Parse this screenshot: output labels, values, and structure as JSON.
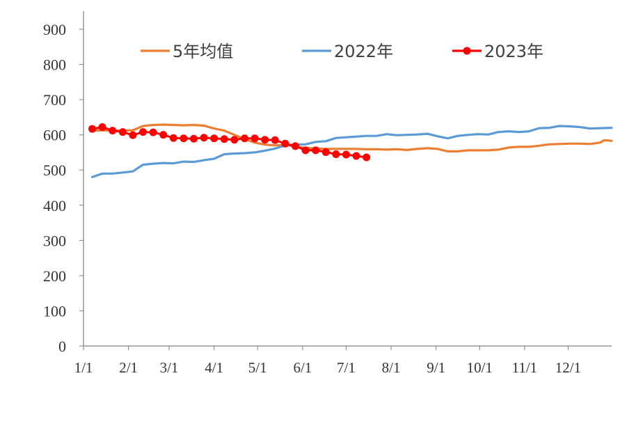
{
  "chart_data": {
    "type": "line",
    "ylim": [
      0,
      900
    ],
    "yticks": [
      "0",
      "100",
      "200",
      "300",
      "400",
      "500",
      "600",
      "700",
      "800",
      "900"
    ],
    "xlim": [
      1,
      365
    ],
    "xticks": [
      {
        "label": "1/1",
        "day": 1
      },
      {
        "label": "2/1",
        "day": 32
      },
      {
        "label": "3/1",
        "day": 60
      },
      {
        "label": "4/1",
        "day": 91
      },
      {
        "label": "5/1",
        "day": 121
      },
      {
        "label": "6/1",
        "day": 152
      },
      {
        "label": "7/1",
        "day": 182
      },
      {
        "label": "8/1",
        "day": 213
      },
      {
        "label": "9/1",
        "day": 244
      },
      {
        "label": "10/1",
        "day": 274
      },
      {
        "label": "11/1",
        "day": 305
      },
      {
        "label": "12/1",
        "day": 335
      }
    ],
    "legend_position": "top",
    "grid": false,
    "series": [
      {
        "name": "5年均值",
        "color": "#ED7D31",
        "marker": false,
        "points": [
          [
            7,
            612
          ],
          [
            14,
            613
          ],
          [
            21,
            612
          ],
          [
            28,
            612
          ],
          [
            35,
            613
          ],
          [
            42,
            625
          ],
          [
            49,
            628
          ],
          [
            56,
            629
          ],
          [
            63,
            628
          ],
          [
            70,
            627
          ],
          [
            77,
            628
          ],
          [
            84,
            626
          ],
          [
            91,
            618
          ],
          [
            98,
            612
          ],
          [
            105,
            600
          ],
          [
            112,
            588
          ],
          [
            119,
            578
          ],
          [
            126,
            572
          ],
          [
            133,
            570
          ],
          [
            140,
            571
          ],
          [
            147,
            567
          ],
          [
            154,
            563
          ],
          [
            161,
            561
          ],
          [
            168,
            560
          ],
          [
            175,
            560
          ],
          [
            182,
            560
          ],
          [
            189,
            560
          ],
          [
            196,
            559
          ],
          [
            203,
            559
          ],
          [
            210,
            558
          ],
          [
            217,
            559
          ],
          [
            224,
            557
          ],
          [
            231,
            560
          ],
          [
            238,
            562
          ],
          [
            245,
            560
          ],
          [
            252,
            553
          ],
          [
            259,
            553
          ],
          [
            266,
            556
          ],
          [
            273,
            556
          ],
          [
            280,
            556
          ],
          [
            287,
            558
          ],
          [
            294,
            564
          ],
          [
            301,
            566
          ],
          [
            308,
            566
          ],
          [
            315,
            569
          ],
          [
            322,
            573
          ],
          [
            329,
            574
          ],
          [
            336,
            575
          ],
          [
            343,
            575
          ],
          [
            350,
            574
          ],
          [
            357,
            578
          ],
          [
            360,
            585
          ],
          [
            365,
            583
          ]
        ]
      },
      {
        "name": "2022年",
        "color": "#5B9BD5",
        "marker": false,
        "points": [
          [
            7,
            480
          ],
          [
            14,
            490
          ],
          [
            21,
            490
          ],
          [
            28,
            493
          ],
          [
            35,
            496
          ],
          [
            42,
            515
          ],
          [
            49,
            518
          ],
          [
            56,
            520
          ],
          [
            63,
            519
          ],
          [
            70,
            524
          ],
          [
            77,
            523
          ],
          [
            84,
            528
          ],
          [
            91,
            532
          ],
          [
            98,
            545
          ],
          [
            105,
            547
          ],
          [
            112,
            548
          ],
          [
            119,
            550
          ],
          [
            126,
            555
          ],
          [
            133,
            561
          ],
          [
            140,
            570
          ],
          [
            147,
            572
          ],
          [
            154,
            573
          ],
          [
            161,
            580
          ],
          [
            168,
            582
          ],
          [
            175,
            591
          ],
          [
            182,
            593
          ],
          [
            189,
            595
          ],
          [
            196,
            597
          ],
          [
            203,
            597
          ],
          [
            210,
            602
          ],
          [
            217,
            599
          ],
          [
            224,
            600
          ],
          [
            231,
            601
          ],
          [
            238,
            603
          ],
          [
            245,
            596
          ],
          [
            252,
            590
          ],
          [
            259,
            597
          ],
          [
            266,
            600
          ],
          [
            273,
            602
          ],
          [
            280,
            601
          ],
          [
            287,
            608
          ],
          [
            294,
            610
          ],
          [
            301,
            608
          ],
          [
            308,
            610
          ],
          [
            315,
            619
          ],
          [
            322,
            620
          ],
          [
            329,
            625
          ],
          [
            336,
            624
          ],
          [
            343,
            622
          ],
          [
            350,
            618
          ],
          [
            357,
            619
          ],
          [
            365,
            620
          ]
        ]
      },
      {
        "name": "2023年",
        "color": "#FF0000",
        "marker": true,
        "points": [
          [
            7,
            617
          ],
          [
            14,
            622
          ],
          [
            21,
            612
          ],
          [
            28,
            608
          ],
          [
            35,
            599
          ],
          [
            42,
            608
          ],
          [
            49,
            607
          ],
          [
            56,
            600
          ],
          [
            63,
            591
          ],
          [
            70,
            590
          ],
          [
            77,
            589
          ],
          [
            84,
            592
          ],
          [
            91,
            590
          ],
          [
            98,
            588
          ],
          [
            105,
            586
          ],
          [
            112,
            590
          ],
          [
            119,
            590
          ],
          [
            126,
            586
          ],
          [
            133,
            585
          ],
          [
            140,
            575
          ],
          [
            147,
            568
          ],
          [
            154,
            556
          ],
          [
            161,
            556
          ],
          [
            168,
            551
          ],
          [
            175,
            545
          ],
          [
            182,
            544
          ],
          [
            189,
            540
          ],
          [
            196,
            536
          ]
        ]
      }
    ]
  }
}
